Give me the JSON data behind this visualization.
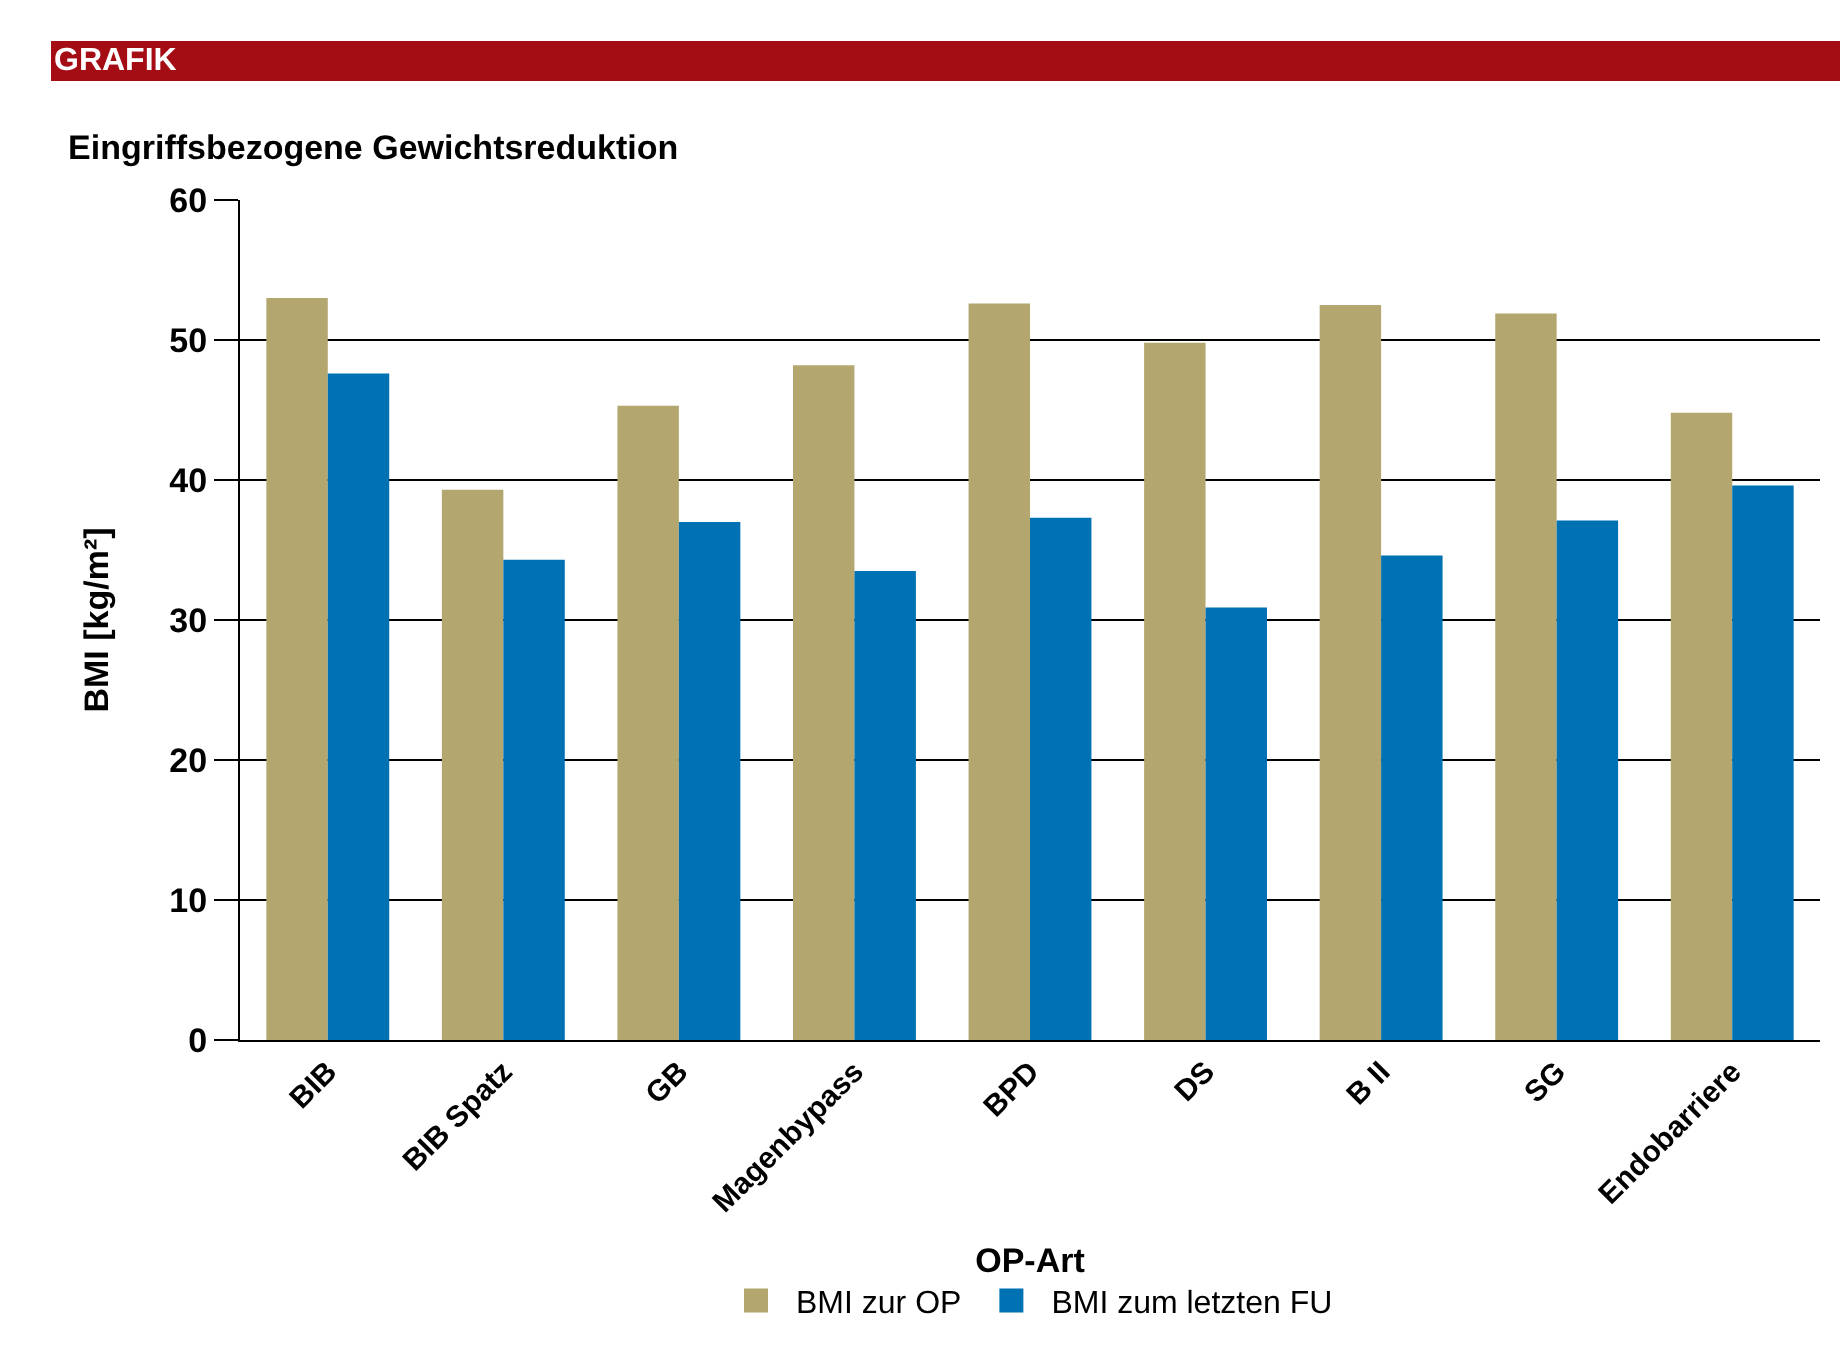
{
  "chart_data": {
    "type": "bar",
    "title": "Eingriffsbezogene Gewichtsreduktion",
    "xlabel": "OP-Art",
    "ylabel": "BMI [kg/m²]",
    "annotations": [
      "GRAFIK"
    ],
    "categories": [
      "BIB",
      "BIB Spatz",
      "GB",
      "Magenbypass",
      "BPD",
      "DS",
      "B II",
      "SG",
      "Endobarriere"
    ],
    "series": [
      {
        "name": "BMI zur OP",
        "color": "#b3a76f",
        "values": [
          53,
          39.3,
          45.3,
          48.2,
          52.6,
          49.8,
          52.5,
          51.9,
          44.8
        ]
      },
      {
        "name": "BMI zum letzten FU",
        "color": "#0071b2",
        "values": [
          47.6,
          34.3,
          37,
          33.5,
          37.3,
          30.9,
          34.6,
          37.1,
          39.6
        ]
      }
    ],
    "ylim": [
      0,
      60
    ],
    "yticks": [
      0,
      10,
      20,
      30,
      40,
      50,
      60
    ],
    "grid": "y",
    "legend": "bottom"
  }
}
